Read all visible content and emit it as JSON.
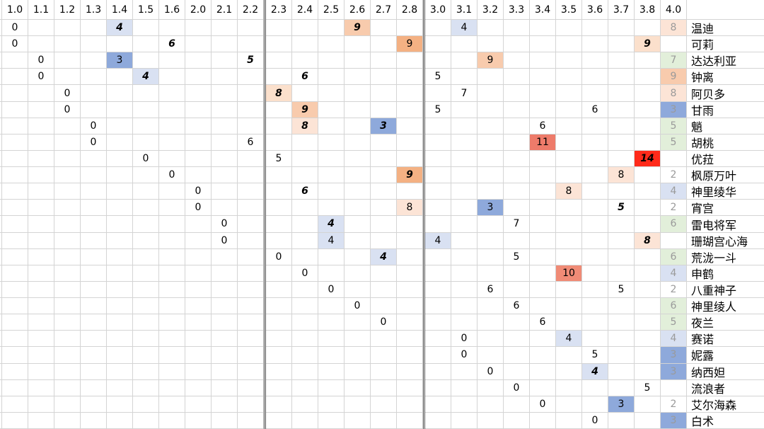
{
  "columns": [
    "1.0",
    "1.1",
    "1.2",
    "1.3",
    "1.4",
    "1.5",
    "1.6",
    "2.0",
    "2.1",
    "2.2",
    "2.3",
    "2.4",
    "2.5",
    "2.6",
    "2.7",
    "2.8",
    "3.0",
    "3.1",
    "3.2",
    "3.3",
    "3.4",
    "3.5",
    "3.6",
    "3.7",
    "3.8",
    "4.0"
  ],
  "rows": [
    {
      "name": "温迪",
      "cells": [
        {
          "col": "1.0",
          "v": 0
        },
        {
          "col": "1.4",
          "v": 4,
          "bold": true,
          "bg": "#d9e1f2"
        },
        {
          "col": "2.6",
          "v": 9,
          "bold": true,
          "bg": "#f8cbad"
        },
        {
          "col": "3.1",
          "v": 4,
          "bg": "#d9e1f2"
        },
        {
          "col": "4.0",
          "v": 8,
          "bg": "#fce4d6"
        }
      ]
    },
    {
      "name": "可莉",
      "cells": [
        {
          "col": "1.0",
          "v": 0
        },
        {
          "col": "1.6",
          "v": 6,
          "bold": true
        },
        {
          "col": "2.8",
          "v": 9,
          "bg": "#f4b183"
        },
        {
          "col": "3.8",
          "v": 9,
          "bold": true,
          "bg": "#fbe0cc"
        }
      ]
    },
    {
      "name": "达达利亚",
      "cells": [
        {
          "col": "1.1",
          "v": 0
        },
        {
          "col": "1.4",
          "v": 3,
          "bg": "#8ea9db"
        },
        {
          "col": "2.2",
          "v": 5,
          "bold": true
        },
        {
          "col": "3.2",
          "v": 9,
          "bg": "#f8cbad"
        },
        {
          "col": "4.0",
          "v": 7,
          "bg": "#e2efda"
        }
      ]
    },
    {
      "name": "钟离",
      "cells": [
        {
          "col": "1.1",
          "v": 0
        },
        {
          "col": "1.5",
          "v": 4,
          "bold": true,
          "bg": "#d9e1f2"
        },
        {
          "col": "2.4",
          "v": 6,
          "bold": true
        },
        {
          "col": "3.0",
          "v": 5
        },
        {
          "col": "4.0",
          "v": 9,
          "bg": "#f8cbad"
        }
      ]
    },
    {
      "name": "阿贝多",
      "cells": [
        {
          "col": "1.2",
          "v": 0
        },
        {
          "col": "2.3",
          "v": 8,
          "bold": true,
          "bg": "#fbe0cc"
        },
        {
          "col": "3.1",
          "v": 7
        },
        {
          "col": "4.0",
          "v": 8,
          "bg": "#fce4d6"
        }
      ]
    },
    {
      "name": "甘雨",
      "cells": [
        {
          "col": "1.2",
          "v": 0
        },
        {
          "col": "2.4",
          "v": 9,
          "bold": true,
          "bg": "#f8cbad"
        },
        {
          "col": "3.0",
          "v": 5
        },
        {
          "col": "3.6",
          "v": 6
        },
        {
          "col": "4.0",
          "v": 3,
          "bg": "#8ea9db"
        }
      ]
    },
    {
      "name": "魈",
      "cells": [
        {
          "col": "1.3",
          "v": 0
        },
        {
          "col": "2.4",
          "v": 8,
          "bold": true,
          "bg": "#fce4d6"
        },
        {
          "col": "2.7",
          "v": 3,
          "bold": true,
          "bg": "#8ea9db"
        },
        {
          "col": "3.4",
          "v": 6
        },
        {
          "col": "4.0",
          "v": 5,
          "bg": "#e2efda"
        }
      ]
    },
    {
      "name": "胡桃",
      "cells": [
        {
          "col": "1.3",
          "v": 0
        },
        {
          "col": "2.2",
          "v": 6
        },
        {
          "col": "3.4",
          "v": 11,
          "bg": "#ee7b6a"
        },
        {
          "col": "4.0",
          "v": 5,
          "bg": "#e2efda"
        }
      ]
    },
    {
      "name": "优菈",
      "cells": [
        {
          "col": "1.5",
          "v": 0
        },
        {
          "col": "2.3",
          "v": 5
        },
        {
          "col": "3.8",
          "v": 14,
          "bold": true,
          "bg": "#ff2a1a"
        }
      ]
    },
    {
      "name": "枫原万叶",
      "cells": [
        {
          "col": "1.6",
          "v": 0
        },
        {
          "col": "2.8",
          "v": 9,
          "bold": true,
          "bg": "#f4b183"
        },
        {
          "col": "3.7",
          "v": 8,
          "bg": "#fce4d6"
        },
        {
          "col": "4.0",
          "v": 2
        }
      ]
    },
    {
      "name": "神里绫华",
      "cells": [
        {
          "col": "2.0",
          "v": 0
        },
        {
          "col": "2.4",
          "v": 6,
          "bold": true
        },
        {
          "col": "3.5",
          "v": 8,
          "bg": "#fce4d6"
        },
        {
          "col": "4.0",
          "v": 4,
          "bg": "#d9e1f2"
        }
      ]
    },
    {
      "name": "宵宫",
      "cells": [
        {
          "col": "2.0",
          "v": 0
        },
        {
          "col": "2.8",
          "v": 8,
          "bg": "#fce4d6"
        },
        {
          "col": "3.2",
          "v": 3,
          "bg": "#8ea9db"
        },
        {
          "col": "3.7",
          "v": 5,
          "bold": true
        },
        {
          "col": "4.0",
          "v": 2
        }
      ]
    },
    {
      "name": "雷电将军",
      "cells": [
        {
          "col": "2.1",
          "v": 0
        },
        {
          "col": "2.5",
          "v": 4,
          "bold": true,
          "bg": "#d9e1f2"
        },
        {
          "col": "3.3",
          "v": 7
        },
        {
          "col": "4.0",
          "v": 6,
          "bg": "#e2efda"
        }
      ]
    },
    {
      "name": "珊瑚宫心海",
      "cells": [
        {
          "col": "2.1",
          "v": 0
        },
        {
          "col": "2.5",
          "v": 4,
          "bg": "#d9e1f2"
        },
        {
          "col": "3.0",
          "v": 4,
          "bg": "#d9e1f2"
        },
        {
          "col": "3.8",
          "v": 8,
          "bold": true,
          "bg": "#fce4d6"
        }
      ]
    },
    {
      "name": "荒泷一斗",
      "cells": [
        {
          "col": "2.3",
          "v": 0
        },
        {
          "col": "2.7",
          "v": 4,
          "bold": true,
          "bg": "#d9e1f2"
        },
        {
          "col": "3.3",
          "v": 5
        },
        {
          "col": "4.0",
          "v": 6,
          "bg": "#e2efda"
        }
      ]
    },
    {
      "name": "申鹤",
      "cells": [
        {
          "col": "2.4",
          "v": 0
        },
        {
          "col": "3.5",
          "v": 10,
          "bg": "#f08b76"
        },
        {
          "col": "4.0",
          "v": 4,
          "bg": "#d9e1f2"
        }
      ]
    },
    {
      "name": "八重神子",
      "cells": [
        {
          "col": "2.5",
          "v": 0
        },
        {
          "col": "3.2",
          "v": 6
        },
        {
          "col": "3.7",
          "v": 5
        },
        {
          "col": "4.0",
          "v": 2
        }
      ]
    },
    {
      "name": "神里绫人",
      "cells": [
        {
          "col": "2.6",
          "v": 0
        },
        {
          "col": "3.3",
          "v": 6
        },
        {
          "col": "4.0",
          "v": 6,
          "bg": "#e2efda"
        }
      ]
    },
    {
      "name": "夜兰",
      "cells": [
        {
          "col": "2.7",
          "v": 0
        },
        {
          "col": "3.4",
          "v": 6
        },
        {
          "col": "4.0",
          "v": 5,
          "bg": "#e2efda"
        }
      ]
    },
    {
      "name": "赛诺",
      "cells": [
        {
          "col": "3.1",
          "v": 0
        },
        {
          "col": "3.5",
          "v": 4,
          "bg": "#d9e1f2"
        },
        {
          "col": "4.0",
          "v": 4,
          "bg": "#d9e1f2"
        }
      ]
    },
    {
      "name": "妮露",
      "cells": [
        {
          "col": "3.1",
          "v": 0
        },
        {
          "col": "3.6",
          "v": 5
        },
        {
          "col": "4.0",
          "v": 3,
          "bg": "#8ea9db"
        }
      ]
    },
    {
      "name": "纳西妲",
      "cells": [
        {
          "col": "3.2",
          "v": 0
        },
        {
          "col": "3.6",
          "v": 4,
          "bold": true,
          "bg": "#d9e1f2"
        },
        {
          "col": "4.0",
          "v": 3,
          "bg": "#8ea9db"
        }
      ]
    },
    {
      "name": "流浪者",
      "cells": [
        {
          "col": "3.3",
          "v": 0
        },
        {
          "col": "3.8",
          "v": 5
        }
      ]
    },
    {
      "name": "艾尔海森",
      "cells": [
        {
          "col": "3.4",
          "v": 0
        },
        {
          "col": "3.7",
          "v": 3,
          "bg": "#8ea9db"
        },
        {
          "col": "4.0",
          "v": 2
        }
      ]
    },
    {
      "name": "白术",
      "cells": [
        {
          "col": "3.6",
          "v": 0
        },
        {
          "col": "4.0",
          "v": 3,
          "bg": "#8ea9db"
        }
      ]
    }
  ]
}
